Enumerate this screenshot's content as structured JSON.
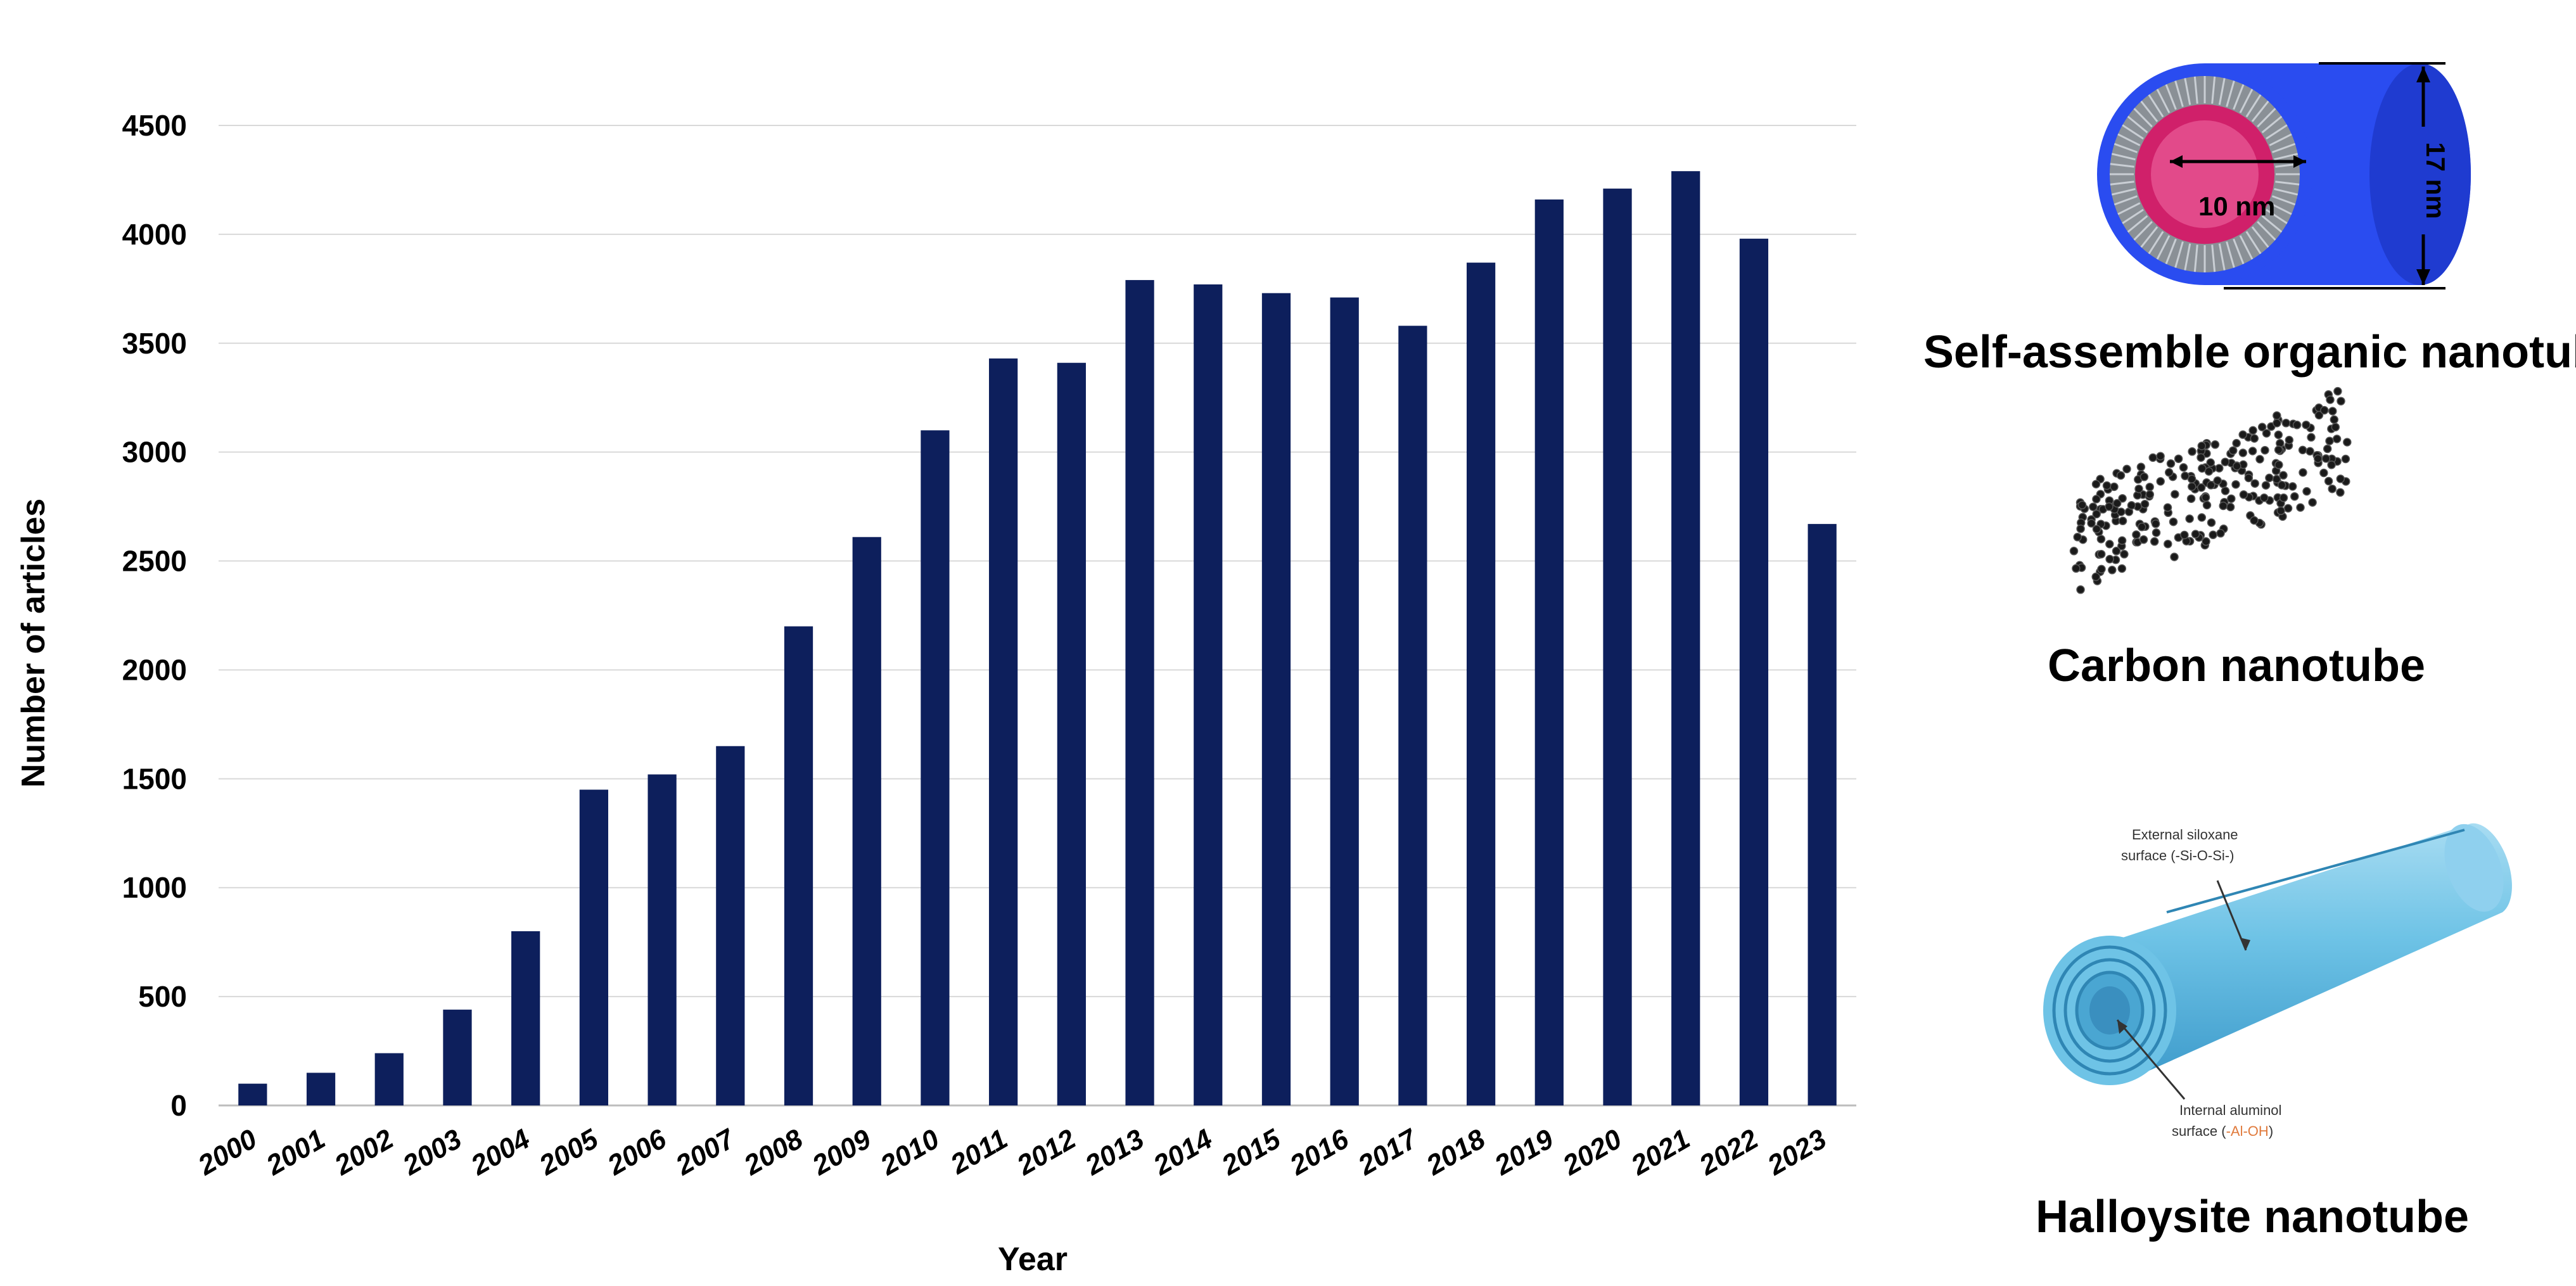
{
  "chart_data": {
    "type": "bar",
    "categories": [
      "2000",
      "2001",
      "2002",
      "2003",
      "2004",
      "2005",
      "2006",
      "2007",
      "2008",
      "2009",
      "2010",
      "2011",
      "2012",
      "2013",
      "2014",
      "2015",
      "2016",
      "2017",
      "2018",
      "2019",
      "2020",
      "2021",
      "2022",
      "2023"
    ],
    "values": [
      100,
      150,
      240,
      440,
      800,
      1450,
      1520,
      1650,
      2200,
      2610,
      3100,
      3430,
      3410,
      3790,
      3770,
      3730,
      3710,
      3580,
      3870,
      4160,
      4210,
      4290,
      3980,
      2670
    ],
    "yticks": [
      0,
      500,
      1000,
      1500,
      2000,
      2500,
      3000,
      3500,
      4000,
      4500
    ],
    "xlabel": "Year",
    "ylabel": "Number of articles",
    "ylim": [
      0,
      4500
    ],
    "grid": true,
    "bar_color": "#0d1f5c"
  },
  "illustrations": {
    "organic": {
      "caption": "Self-assemble organic nanotube",
      "inner_dim": "10 nm",
      "outer_dim": "17 nm",
      "shell_color": "#2a4cf0",
      "core_color": "#d0206a"
    },
    "carbon": {
      "caption": "Carbon nanotube"
    },
    "halloysite": {
      "caption": "Halloysite nanotube",
      "label_external_1": "External siloxane",
      "label_external_2": "surface (-Si-O-Si-)",
      "label_internal_1": "Internal aluminol",
      "label_internal_2_prefix": "surface (",
      "label_internal_2_highlight": "-Al-OH",
      "label_internal_2_suffix": ")",
      "tube_color": "#6ec3e6"
    }
  }
}
